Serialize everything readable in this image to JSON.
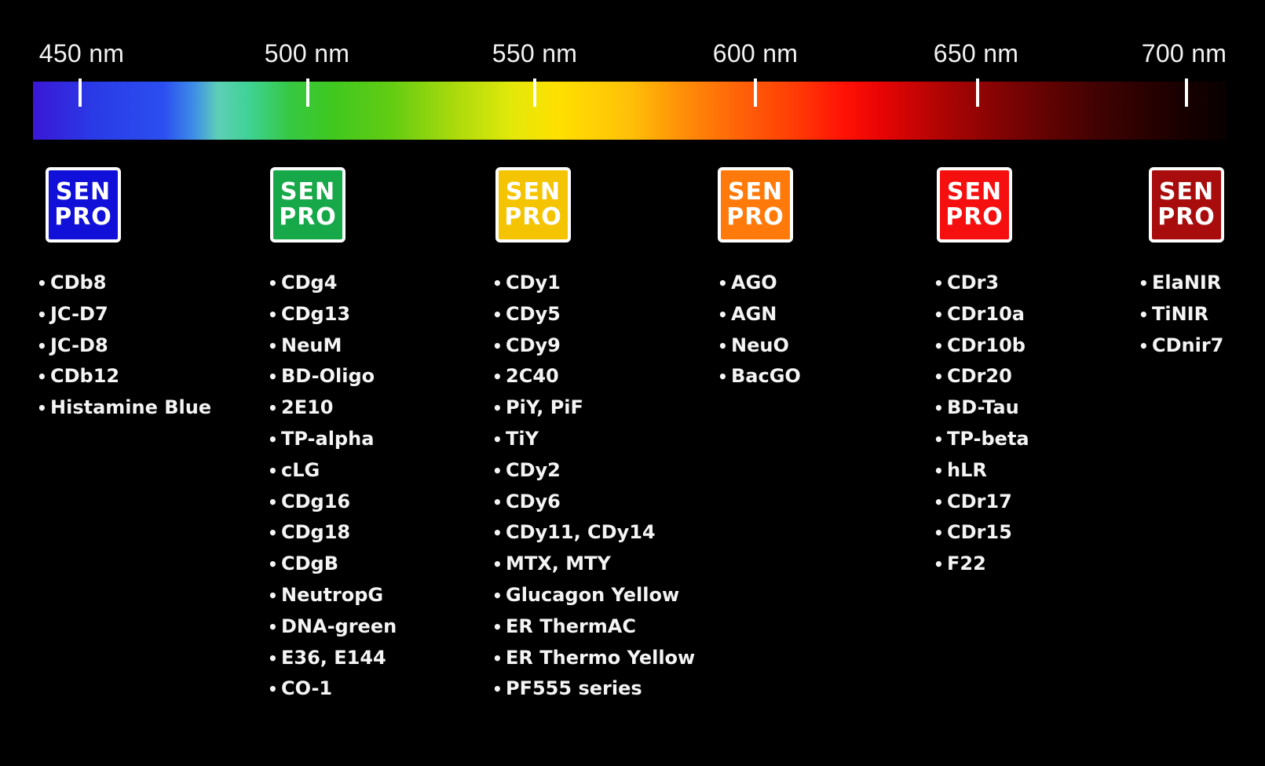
{
  "wavelength_labels": [
    "450 nm",
    "500 nm",
    "550 nm",
    "600 nm",
    "650 nm",
    "700 nm"
  ],
  "groups": [
    {
      "badge": {
        "line1": "SEN",
        "line2": "PRO",
        "color": "#1010d8"
      },
      "dyes": [
        "CDb8",
        "JC-D7",
        "JC-D8",
        "CDb12",
        "Histamine Blue"
      ]
    },
    {
      "badge": {
        "line1": "SEN",
        "line2": "PRO",
        "color": "#17a84a"
      },
      "dyes": [
        "CDg4",
        "CDg13",
        "NeuM",
        "BD-Oligo",
        "2E10",
        "TP-alpha",
        "cLG",
        "CDg16",
        "CDg18",
        "CDgB",
        "NeutropG",
        "DNA-green",
        "E36, E144",
        "CO-1"
      ]
    },
    {
      "badge": {
        "line1": "SEN",
        "line2": "PRO",
        "color": "#f5c400"
      },
      "dyes": [
        "CDy1",
        "CDy5",
        "CDy9",
        "2C40",
        "PiY, PiF",
        "TiY",
        "CDy2",
        "CDy6",
        "CDy11, CDy14",
        "MTX, MTY",
        "Glucagon Yellow",
        "ER ThermAC",
        "ER Thermo Yellow",
        "PF555 series"
      ]
    },
    {
      "badge": {
        "line1": "SEN",
        "line2": "PRO",
        "color": "#ff7a0a"
      },
      "dyes": [
        "AGO",
        "AGN",
        "NeuO",
        "BacGO"
      ]
    },
    {
      "badge": {
        "line1": "SEN",
        "line2": "PRO",
        "color": "#f50f0f"
      },
      "dyes": [
        "CDr3",
        "CDr10a",
        "CDr10b",
        "CDr20",
        "BD-Tau",
        "TP-beta",
        "hLR",
        "CDr17",
        "CDr15",
        "F22"
      ]
    },
    {
      "badge": {
        "line1": "SEN",
        "line2": "PRO",
        "color": "#a80c0c"
      },
      "dyes": [
        "ElaNIR",
        "TiNIR",
        "CDnir7"
      ]
    }
  ]
}
